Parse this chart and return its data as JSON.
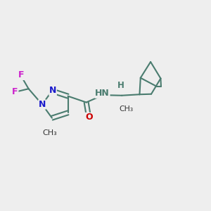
{
  "bg_color": "#eeeeee",
  "bond_color": "#4a7c6f",
  "bond_lw": 1.5,
  "atom_colors": {
    "N": "#1a1acc",
    "O": "#cc0000",
    "F": "#cc22cc",
    "H": "#4a7c6f",
    "C": "#333333"
  },
  "figsize": [
    3.0,
    3.0
  ],
  "dpi": 100,
  "xlim": [
    0,
    10
  ],
  "ylim": [
    0,
    10
  ]
}
